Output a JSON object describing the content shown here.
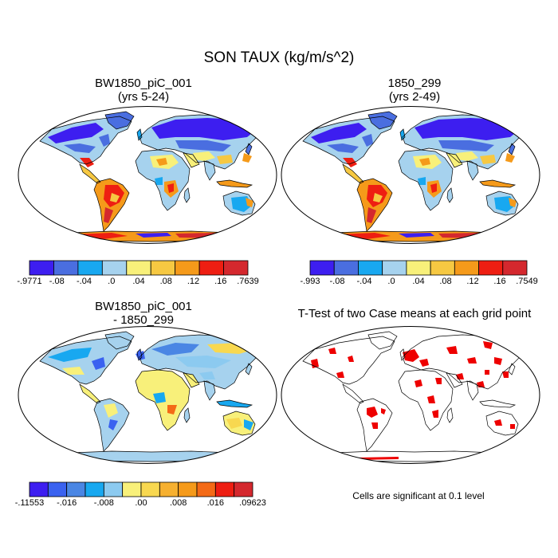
{
  "title": "SON TAUX (kg/m/s^2)",
  "panels": {
    "p1": {
      "title_line1": "BW1850_piC_001",
      "title_line2": "(yrs 5-24)"
    },
    "p2": {
      "title_line1": "1850_299",
      "title_line2": "(yrs 2-49)"
    },
    "p3": {
      "title_line1": "BW1850_piC_001",
      "title_line2": "- 1850_299"
    },
    "p4": {
      "title_line1": "T-Test of two Case means at each grid point"
    }
  },
  "colorbars": {
    "cb1": {
      "colors": [
        "#3d1ef0",
        "#4a6ee0",
        "#18a8f0",
        "#a6d2ee",
        "#f8f07a",
        "#f6c842",
        "#f59a1a",
        "#ee1e12",
        "#d4282e"
      ],
      "labels": [
        "-.9771",
        "-.08",
        "-.04",
        ".0",
        ".04",
        ".08",
        ".12",
        ".16",
        ".7639"
      ]
    },
    "cb2": {
      "colors": [
        "#3d1ef0",
        "#4a6ee0",
        "#18a8f0",
        "#a6d2ee",
        "#f8f07a",
        "#f6c842",
        "#f59a1a",
        "#ee1e12",
        "#d4282e"
      ],
      "labels": [
        "-.993",
        "-.08",
        "-.04",
        ".0",
        ".04",
        ".08",
        ".12",
        ".16",
        ".7549"
      ]
    },
    "cb3": {
      "colors": [
        "#3d1ef0",
        "#3a62f0",
        "#4a86e4",
        "#18a8f0",
        "#8ccaf0",
        "#f8f07a",
        "#f8d850",
        "#f6b030",
        "#f59a1a",
        "#f46a16",
        "#ee1e12",
        "#d4282e"
      ],
      "labels": [
        "-.11553",
        "-.016",
        "-.008",
        ".00",
        ".008",
        ".016",
        ".09623"
      ]
    }
  },
  "significance_color": "#ee0000",
  "note": "Cells are significant at 0.1 level",
  "icons": [
    "world-map-robinson"
  ]
}
